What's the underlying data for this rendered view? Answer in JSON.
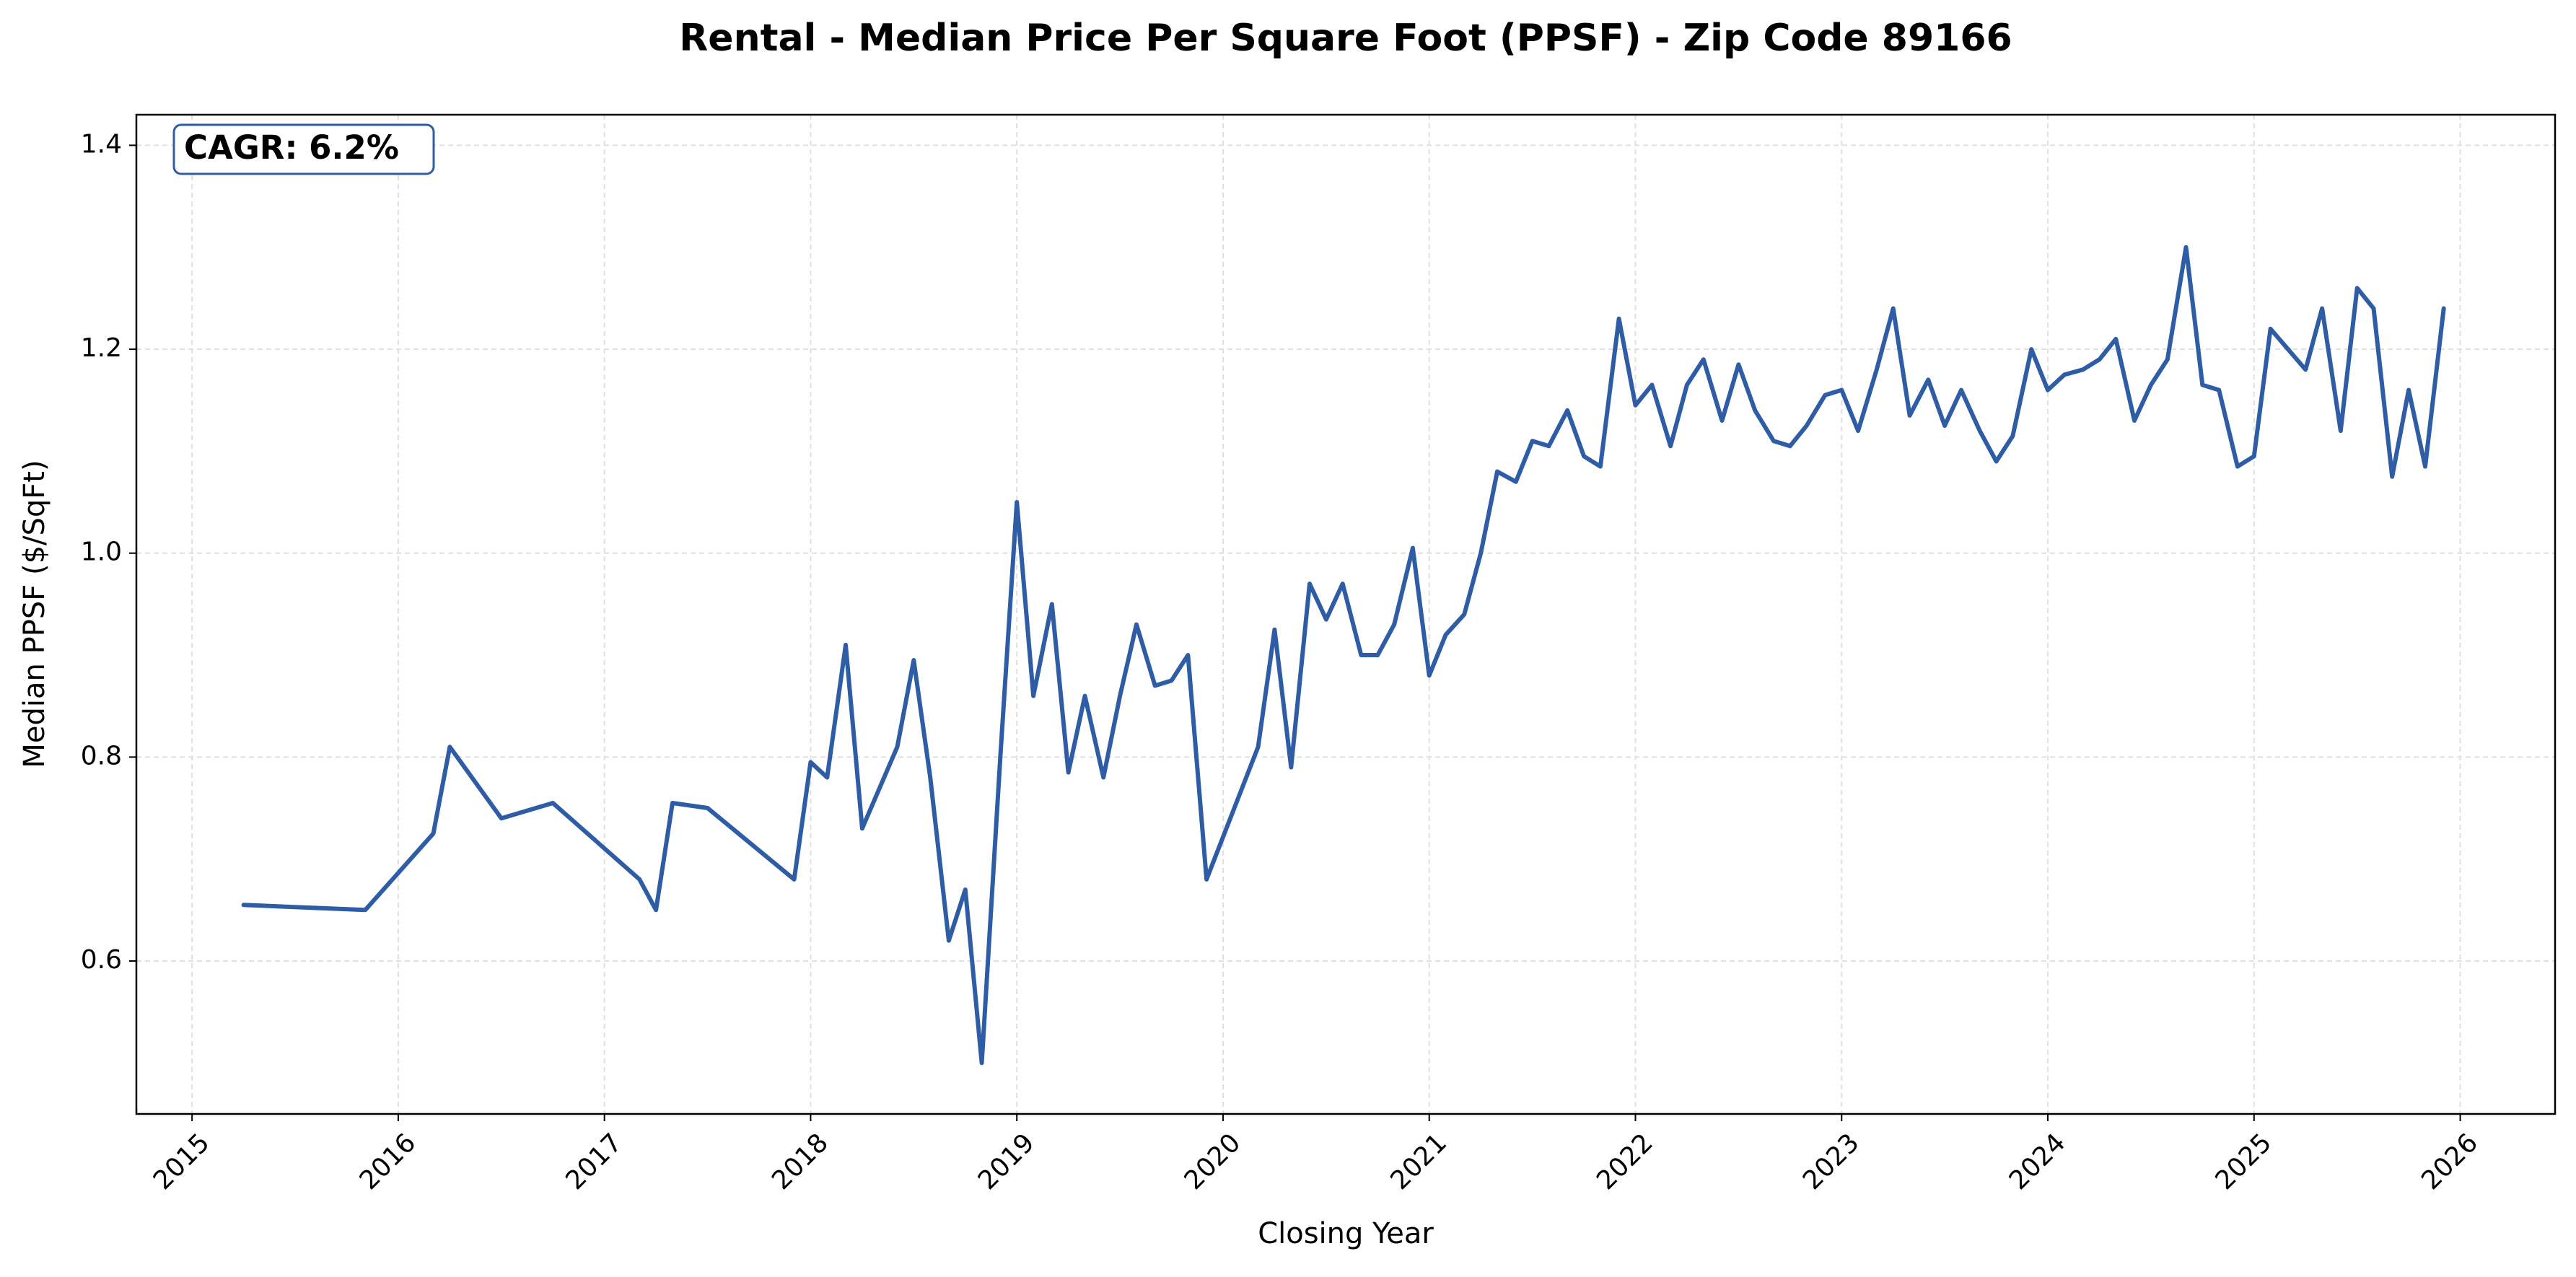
{
  "chart_data": {
    "type": "line",
    "title": "Rental - Median Price Per Square Foot (PPSF) - Zip Code 89166",
    "x_label": "Closing Year",
    "y_label": "Median PPSF ($/SqFt)",
    "annotation": "CAGR: 6.2%",
    "color": "#2e5ca5",
    "grid": true,
    "x": [
      2015.25,
      2015.84,
      2016.17,
      2016.25,
      2016.5,
      2016.75,
      2017.17,
      2017.25,
      2017.33,
      2017.5,
      2017.92,
      2018.0,
      2018.08,
      2018.17,
      2018.25,
      2018.42,
      2018.5,
      2018.58,
      2018.67,
      2018.75,
      2018.83,
      2018.92,
      2019.0,
      2019.08,
      2019.17,
      2019.25,
      2019.33,
      2019.42,
      2019.5,
      2019.58,
      2019.67,
      2019.75,
      2019.83,
      2019.92,
      2020.17,
      2020.25,
      2020.33,
      2020.42,
      2020.5,
      2020.58,
      2020.67,
      2020.75,
      2020.83,
      2020.92,
      2021.0,
      2021.08,
      2021.17,
      2021.25,
      2021.33,
      2021.42,
      2021.5,
      2021.58,
      2021.67,
      2021.75,
      2021.83,
      2021.92,
      2022.0,
      2022.08,
      2022.17,
      2022.25,
      2022.33,
      2022.42,
      2022.5,
      2022.58,
      2022.67,
      2022.75,
      2022.83,
      2022.92,
      2023.0,
      2023.08,
      2023.17,
      2023.25,
      2023.33,
      2023.42,
      2023.5,
      2023.58,
      2023.67,
      2023.75,
      2023.83,
      2023.92,
      2024.0,
      2024.08,
      2024.17,
      2024.25,
      2024.33,
      2024.42,
      2024.5,
      2024.58,
      2024.67,
      2024.75,
      2024.83,
      2024.92,
      2025.0,
      2025.08,
      2025.25,
      2025.33,
      2025.42,
      2025.5,
      2025.58,
      2025.67,
      2025.75,
      2025.83,
      2025.92
    ],
    "values": [
      0.655,
      0.65,
      0.725,
      0.81,
      0.74,
      0.755,
      0.68,
      0.65,
      0.755,
      0.75,
      0.68,
      0.795,
      0.78,
      0.91,
      0.73,
      0.81,
      0.895,
      0.78,
      0.62,
      0.67,
      0.5,
      0.8,
      1.05,
      0.86,
      0.95,
      0.785,
      0.86,
      0.78,
      0.86,
      0.93,
      0.87,
      0.875,
      0.9,
      0.68,
      0.81,
      0.925,
      0.79,
      0.97,
      0.935,
      0.97,
      0.9,
      0.9,
      0.93,
      1.005,
      0.88,
      0.92,
      0.94,
      1.0,
      1.08,
      1.07,
      1.11,
      1.105,
      1.14,
      1.095,
      1.085,
      1.23,
      1.145,
      1.165,
      1.105,
      1.165,
      1.19,
      1.13,
      1.185,
      1.14,
      1.11,
      1.105,
      1.125,
      1.155,
      1.16,
      1.12,
      1.18,
      1.24,
      1.135,
      1.17,
      1.125,
      1.16,
      1.12,
      1.09,
      1.115,
      1.2,
      1.16,
      1.175,
      1.18,
      1.19,
      1.21,
      1.13,
      1.165,
      1.19,
      1.3,
      1.165,
      1.16,
      1.085,
      1.095,
      1.22,
      1.18,
      1.24,
      1.12,
      1.26,
      1.24,
      1.075,
      1.16,
      1.085,
      1.24
    ],
    "xlim": [
      2014.73,
      2026.46
    ],
    "xticks": [
      2015,
      2016,
      2017,
      2018,
      2019,
      2020,
      2021,
      2022,
      2023,
      2024,
      2025,
      2026
    ],
    "ylim": [
      0.45,
      1.43
    ],
    "yticks": [
      0.6,
      0.8,
      {
        "value": 1,
        "label": "1.0"
      },
      1.2,
      1.4
    ]
  }
}
